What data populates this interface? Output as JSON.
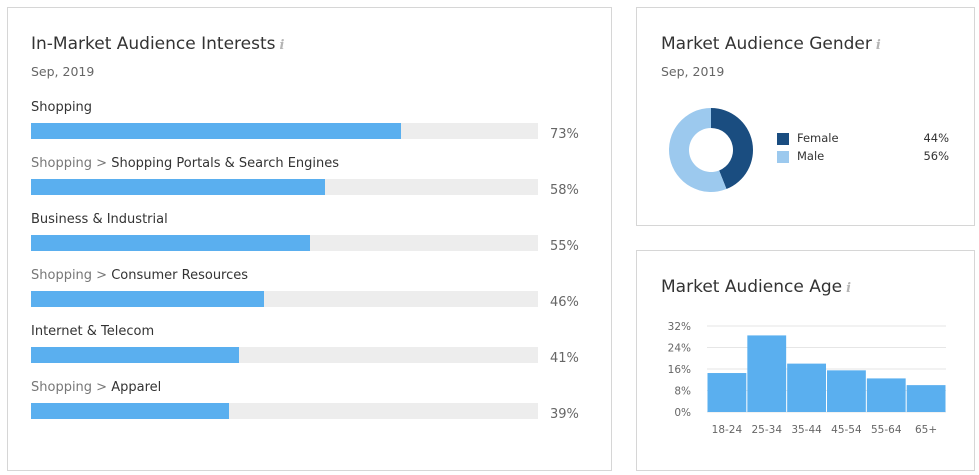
{
  "interests": {
    "title": "In-Market Audience Interests",
    "info_glyph": "i",
    "date": "Sep, 2019",
    "chart_data": {
      "type": "bar",
      "orientation": "horizontal",
      "categories": [
        {
          "parent": "",
          "label": "Shopping"
        },
        {
          "parent": "Shopping >",
          "label": "Shopping Portals & Search Engines"
        },
        {
          "parent": "",
          "label": "Business & Industrial"
        },
        {
          "parent": "Shopping >",
          "label": "Consumer Resources"
        },
        {
          "parent": "",
          "label": "Internet & Telecom"
        },
        {
          "parent": "Shopping >",
          "label": "Apparel"
        }
      ],
      "values": [
        73,
        58,
        55,
        46,
        41,
        39
      ],
      "value_labels": [
        "73%",
        "58%",
        "55%",
        "46%",
        "41%",
        "39%"
      ],
      "xlim": [
        0,
        100
      ]
    }
  },
  "gender": {
    "title": "Market Audience Gender",
    "info_glyph": "i",
    "date": "Sep, 2019",
    "chart_data": {
      "type": "pie",
      "labels": [
        "Female",
        "Male"
      ],
      "values": [
        44,
        56
      ],
      "value_labels": [
        "44%",
        "56%"
      ],
      "colors": [
        "#1a4d80",
        "#9cc9ee"
      ]
    }
  },
  "age": {
    "title": "Market Audience Age",
    "info_glyph": "i",
    "chart_data": {
      "type": "bar",
      "categories": [
        "18-24",
        "25-34",
        "35-44",
        "45-54",
        "55-64",
        "65+"
      ],
      "values": [
        14.5,
        28.5,
        18,
        15.5,
        12.5,
        10
      ],
      "ylim": [
        0,
        32
      ],
      "yticks": [
        0,
        8,
        16,
        24,
        32
      ],
      "ytick_labels": [
        "0%",
        "8%",
        "16%",
        "24%",
        "32%"
      ],
      "grid": true,
      "color": "#5aafef"
    }
  }
}
